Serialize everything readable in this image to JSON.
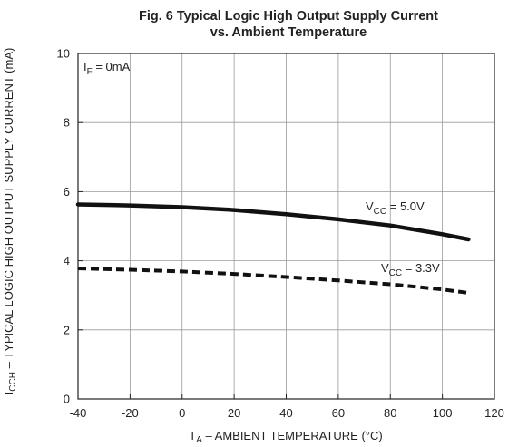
{
  "chart_data": {
    "type": "line",
    "title_line1": "Fig. 6 Typical Logic High Output Supply Current",
    "title_line2": "vs. Ambient Temperature",
    "xlabel": {
      "main": "T",
      "sub": "A",
      "rest": " – AMBIENT TEMPERATURE (°C)"
    },
    "ylabel": {
      "main": "I",
      "sub": "CCH",
      "rest": " – TYPICAL LOGIC HIGH OUTPUT SUPPLY CURRENT (mA)"
    },
    "xlim": [
      -40,
      120
    ],
    "ylim": [
      0,
      10
    ],
    "xticks": [
      "-40",
      "-20",
      "0",
      "20",
      "40",
      "60",
      "80",
      "100",
      "120"
    ],
    "yticks": [
      "0",
      "2",
      "4",
      "6",
      "8",
      "10"
    ],
    "grid": true,
    "condition": {
      "main": "I",
      "sub": "F",
      "rest": " = 0mA"
    },
    "series": [
      {
        "name": "VCC = 5.0V",
        "label": {
          "main": "V",
          "sub": "CC",
          "rest": " = 5.0V"
        },
        "style": "solid",
        "color": "#111111",
        "x": [
          -40,
          -20,
          0,
          20,
          40,
          60,
          80,
          100,
          110
        ],
        "y": [
          5.63,
          5.6,
          5.55,
          5.47,
          5.35,
          5.2,
          5.02,
          4.77,
          4.62
        ]
      },
      {
        "name": "VCC = 3.3V",
        "label": {
          "main": "V",
          "sub": "CC",
          "rest": " = 3.3V"
        },
        "style": "dashed",
        "color": "#111111",
        "x": [
          -40,
          -20,
          0,
          20,
          40,
          60,
          80,
          100,
          110
        ],
        "y": [
          3.78,
          3.74,
          3.69,
          3.62,
          3.53,
          3.43,
          3.32,
          3.17,
          3.07
        ]
      }
    ]
  }
}
